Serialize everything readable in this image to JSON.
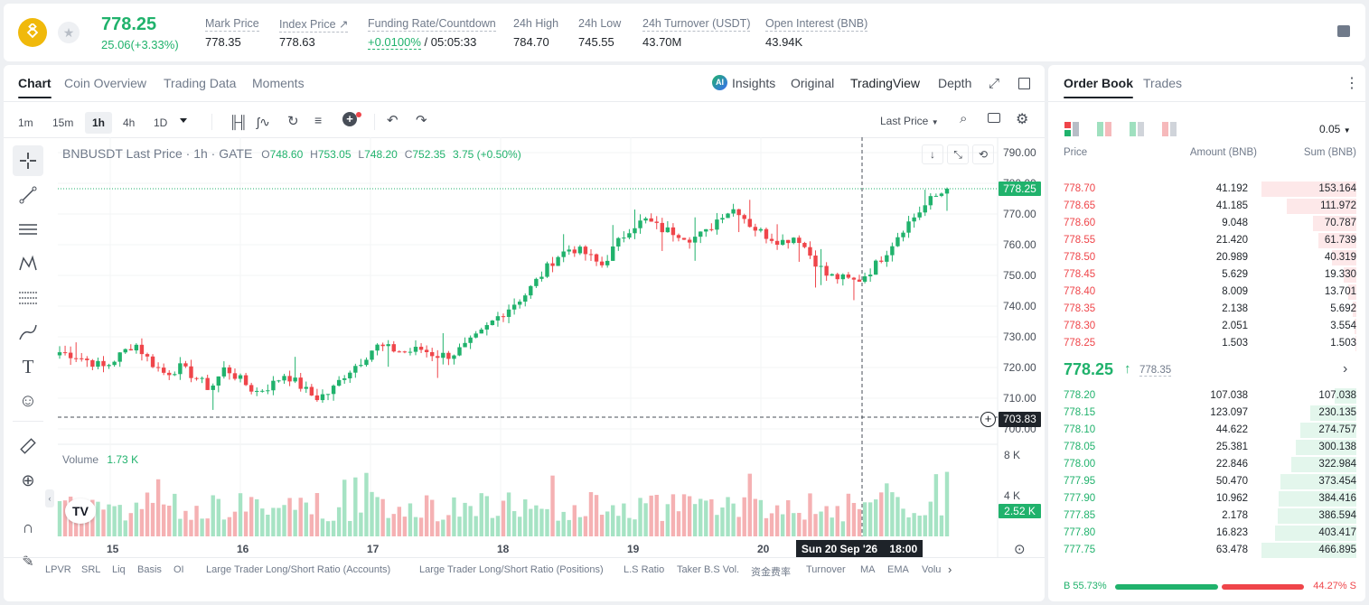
{
  "header": {
    "price": "778.25",
    "change": "25.06(+3.33%)",
    "stats": [
      {
        "label": "Mark Price",
        "value": "778.35"
      },
      {
        "label": "Index Price ↗",
        "value": "778.63"
      },
      {
        "label": "Funding Rate/Countdown",
        "value": "+0.0100%",
        "value2": "/ 05:05:33"
      },
      {
        "label": "24h High",
        "value": "784.70"
      },
      {
        "label": "24h Low",
        "value": "745.55"
      },
      {
        "label": "24h Turnover (USDT)",
        "value": "43.70M"
      },
      {
        "label": "Open Interest (BNB)",
        "value": "43.94K"
      }
    ]
  },
  "chart_tabs": [
    "Chart",
    "Coin Overview",
    "Trading Data",
    "Moments"
  ],
  "view_tabs": {
    "insights": "Insights",
    "original": "Original",
    "tradingview": "TradingView",
    "depth": "Depth"
  },
  "timeframes": [
    "1m",
    "15m",
    "1h",
    "4h",
    "1D"
  ],
  "price_type": "Last Price",
  "chart_data": {
    "type": "candlestick",
    "symbol": "BNBUSDT Last Price · 1h · GATE",
    "ohlc": {
      "o": "748.60",
      "h": "753.05",
      "l": "748.20",
      "c": "752.35",
      "chg": "3.75 (+0.50%)"
    },
    "ylim": [
      695,
      795
    ],
    "y_ticks": [
      "790.00",
      "780.00",
      "770.00",
      "760.00",
      "750.00",
      "740.00",
      "730.00",
      "720.00",
      "710.00",
      "700.00"
    ],
    "last_price": "778.25",
    "cursor_price": "703.83",
    "x_ticks": [
      "15",
      "16",
      "17",
      "18",
      "19",
      "20"
    ],
    "cursor_time": "Sun 20 Sep '26    18:00",
    "close_path": [
      725,
      724,
      722,
      720,
      724,
      728,
      722,
      718,
      720,
      717,
      713,
      720,
      716,
      712,
      714,
      718,
      714,
      710,
      712,
      718,
      722,
      727,
      726,
      725,
      726,
      724,
      724,
      727,
      731,
      736,
      740,
      744,
      750,
      756,
      759,
      757,
      753,
      760,
      766,
      768,
      765,
      764,
      762,
      764,
      770,
      772,
      766,
      763,
      761,
      763,
      756,
      750,
      749,
      748,
      752,
      758,
      765,
      770,
      775,
      778
    ],
    "volume": {
      "label": "Volume",
      "value": "1.73 K",
      "ticks": [
        "8 K",
        "4 K"
      ],
      "last": "2.52 K"
    }
  },
  "indicators": [
    "LPVR",
    "SRL",
    "Liq",
    "Basis",
    "OI",
    "Large Trader Long/Short Ratio (Accounts)",
    "Large Trader Long/Short Ratio (Positions)",
    "L.S Ratio",
    "Taker B.S Vol.",
    "资金费率",
    "Turnover",
    "MA",
    "EMA",
    "Volu"
  ],
  "orderbook": {
    "tabs": [
      "Order Book",
      "Trades"
    ],
    "precision": "0.05",
    "headers": [
      "Price",
      "Amount (BNB)",
      "Sum (BNB)"
    ],
    "asks": [
      {
        "price": "778.70",
        "amount": "41.192",
        "sum": "153.164",
        "depth": 1.0
      },
      {
        "price": "778.65",
        "amount": "41.185",
        "sum": "111.972",
        "depth": 0.73
      },
      {
        "price": "778.60",
        "amount": "9.048",
        "sum": "70.787",
        "depth": 0.46
      },
      {
        "price": "778.55",
        "amount": "21.420",
        "sum": "61.739",
        "depth": 0.4
      },
      {
        "price": "778.50",
        "amount": "20.989",
        "sum": "40.319",
        "depth": 0.26
      },
      {
        "price": "778.45",
        "amount": "5.629",
        "sum": "19.330",
        "depth": 0.13
      },
      {
        "price": "778.40",
        "amount": "8.009",
        "sum": "13.701",
        "depth": 0.09
      },
      {
        "price": "778.35",
        "amount": "2.138",
        "sum": "5.692",
        "depth": 0.04
      },
      {
        "price": "778.30",
        "amount": "2.051",
        "sum": "3.554",
        "depth": 0.02
      },
      {
        "price": "778.25",
        "amount": "1.503",
        "sum": "1.503",
        "depth": 0.01
      }
    ],
    "mid_price": "778.25",
    "mid_mark": "778.35",
    "bids": [
      {
        "price": "778.20",
        "amount": "107.038",
        "sum": "107.038",
        "depth": 0.23
      },
      {
        "price": "778.15",
        "amount": "123.097",
        "sum": "230.135",
        "depth": 0.49
      },
      {
        "price": "778.10",
        "amount": "44.622",
        "sum": "274.757",
        "depth": 0.59
      },
      {
        "price": "778.05",
        "amount": "25.381",
        "sum": "300.138",
        "depth": 0.64
      },
      {
        "price": "778.00",
        "amount": "22.846",
        "sum": "322.984",
        "depth": 0.69
      },
      {
        "price": "777.95",
        "amount": "50.470",
        "sum": "373.454",
        "depth": 0.8
      },
      {
        "price": "777.90",
        "amount": "10.962",
        "sum": "384.416",
        "depth": 0.82
      },
      {
        "price": "777.85",
        "amount": "2.178",
        "sum": "386.594",
        "depth": 0.83
      },
      {
        "price": "777.80",
        "amount": "16.823",
        "sum": "403.417",
        "depth": 0.86
      },
      {
        "price": "777.75",
        "amount": "63.478",
        "sum": "466.895",
        "depth": 1.0
      }
    ],
    "buy_ratio": "B 55.73%",
    "sell_ratio": "44.27% S",
    "buy_fraction": 0.5573
  },
  "colors": {
    "up": "#20b26c",
    "down": "#ef454a",
    "accent": "#f0b90b"
  }
}
